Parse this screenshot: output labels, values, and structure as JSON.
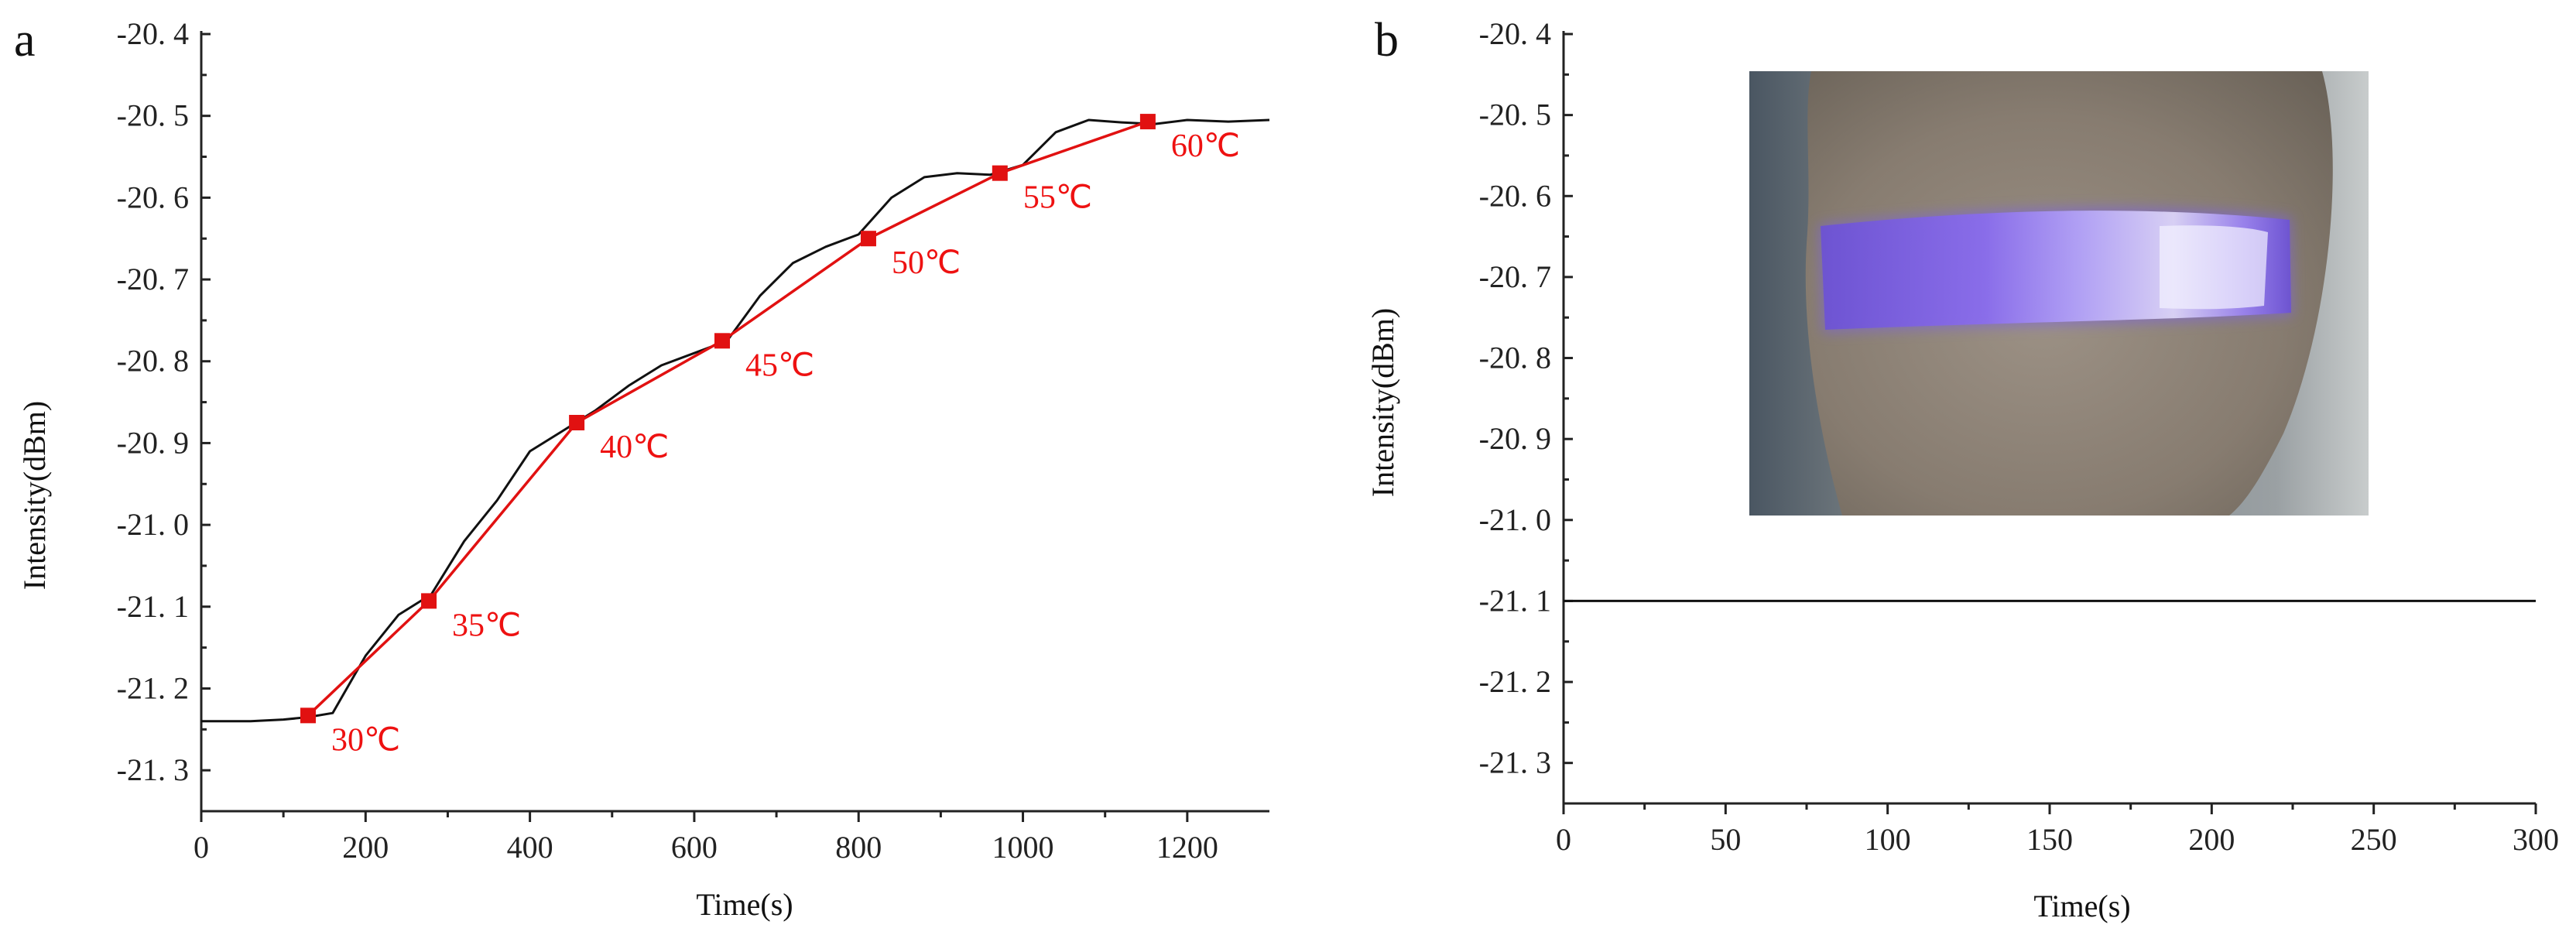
{
  "chart_data": [
    {
      "panel_label": "a",
      "type": "line",
      "xlabel": "Time(s)",
      "ylabel": "Intensity(dBm)",
      "xlim": [
        0,
        1300
      ],
      "ylim": [
        -21.35,
        -20.4
      ],
      "x_ticks": [
        0,
        200,
        400,
        600,
        800,
        1000,
        1200
      ],
      "x_tick_labels": [
        "0",
        "200",
        "400",
        "600",
        "800",
        "1000",
        "1200"
      ],
      "y_ticks": [
        -20.4,
        -20.5,
        -20.6,
        -20.7,
        -20.8,
        -20.9,
        -21.0,
        -21.1,
        -21.2,
        -21.3
      ],
      "y_tick_labels": [
        "-20. 4",
        "-20. 5",
        "-20. 6",
        "-20. 7",
        "-20. 8",
        "-20. 9",
        "-21. 0",
        "-21. 1",
        "-21. 2",
        "-21. 3"
      ],
      "series": [
        {
          "color": "#111111",
          "x": [
            0,
            60,
            100,
            130,
            160,
            200,
            240,
            280,
            320,
            360,
            400,
            440,
            480,
            520,
            560,
            600,
            640,
            680,
            720,
            760,
            800,
            840,
            880,
            920,
            960,
            1000,
            1040,
            1080,
            1120,
            1160,
            1200,
            1250,
            1300
          ],
          "y": [
            -21.24,
            -21.24,
            -21.238,
            -21.235,
            -21.23,
            -21.16,
            -21.11,
            -21.085,
            -21.02,
            -20.97,
            -20.91,
            -20.885,
            -20.86,
            -20.83,
            -20.805,
            -20.79,
            -20.775,
            -20.72,
            -20.68,
            -20.66,
            -20.645,
            -20.6,
            -20.575,
            -20.57,
            -20.572,
            -20.56,
            -20.52,
            -20.505,
            -20.508,
            -20.51,
            -20.505,
            -20.507,
            -20.505
          ]
        },
        {
          "color": "#e11111",
          "marker": "square",
          "x": [
            130,
            277,
            457,
            634,
            812,
            972,
            1152
          ],
          "y": [
            -21.233,
            -21.093,
            -20.875,
            -20.775,
            -20.65,
            -20.57,
            -20.507
          ],
          "point_labels": [
            "30℃",
            "35℃",
            "40℃",
            "45℃",
            "50℃",
            "55℃",
            "60℃"
          ]
        }
      ]
    },
    {
      "panel_label": "b",
      "type": "line",
      "xlabel": "Time(s)",
      "ylabel": "Intensity(dBm)",
      "xlim": [
        0,
        300
      ],
      "ylim": [
        -21.35,
        -20.4
      ],
      "x_ticks": [
        0,
        50,
        100,
        150,
        200,
        250,
        300
      ],
      "x_tick_labels": [
        "0",
        "50",
        "100",
        "150",
        "200",
        "250",
        "300"
      ],
      "y_ticks": [
        -20.4,
        -20.5,
        -20.6,
        -20.7,
        -20.8,
        -20.9,
        -21.0,
        -21.1,
        -21.2,
        -21.3
      ],
      "y_tick_labels": [
        "-20. 4",
        "-20. 5",
        "-20. 6",
        "-20. 7",
        "-20. 8",
        "-20. 9",
        "-21. 0",
        "-21. 1",
        "-21. 2",
        "-21. 3"
      ],
      "series": [
        {
          "color": "#111111",
          "x": [
            0,
            300
          ],
          "y": [
            -21.1,
            -21.1
          ]
        }
      ],
      "inset_photo": {
        "skin_color": "#8f8579",
        "glow_color": "#8a6cf2"
      }
    }
  ]
}
